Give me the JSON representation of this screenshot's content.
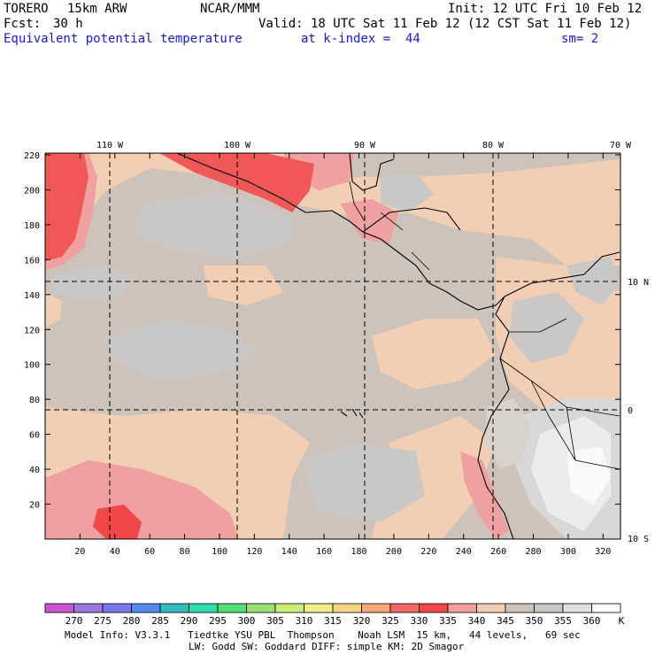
{
  "header": {
    "model": "TORERO",
    "resolution": "15km ARW",
    "center": "NCAR/MMM",
    "init": "Init: 12 UTC Fri 10 Feb 12",
    "fcst_label": "Fcst:",
    "fcst_value": "30 h",
    "valid": "Valid: 18 UTC Sat 11 Feb 12 (12 CST Sat 11 Feb 12)",
    "field": "Equivalent potential temperature",
    "level": "at k-index =  44",
    "smoothing": "sm= 2"
  },
  "map": {
    "lon_labels": [
      "110 W",
      "100 W",
      "90 W",
      "80 W",
      "70 W"
    ],
    "lat_labels": [
      "10 N",
      "0",
      "10 S"
    ],
    "x_ticks": [
      "20",
      "40",
      "60",
      "80",
      "100",
      "120",
      "140",
      "160",
      "180",
      "200",
      "220",
      "240",
      "260",
      "280",
      "300",
      "320"
    ],
    "y_ticks": [
      "20",
      "40",
      "60",
      "80",
      "100",
      "120",
      "140",
      "160",
      "180",
      "200",
      "220"
    ]
  },
  "colorbar": {
    "labels": [
      "270",
      "275",
      "280",
      "285",
      "290",
      "295",
      "300",
      "305",
      "310",
      "315",
      "320",
      "325",
      "330",
      "335",
      "340",
      "345",
      "350",
      "355",
      "360"
    ],
    "unit": "K",
    "colors": [
      "#cc55cc",
      "#9977dd",
      "#7777ee",
      "#5588ee",
      "#33bbbb",
      "#33ddaa",
      "#55dd77",
      "#99e077",
      "#ccee77",
      "#f0ee88",
      "#f8d488",
      "#f8a878",
      "#f06868",
      "#f04848",
      "#f0a0a0",
      "#f2cfb4",
      "#cdc3bb",
      "#c8c8c8",
      "#e0e0e0",
      "#fafafa"
    ]
  },
  "footer": {
    "line1": "Model Info: V3.3.1   Tiedtke YSU PBL  Thompson    Noah LSM  15 km,   44 levels,   69 sec",
    "line2": "LW: Godd SW: Goddard DIFF: simple KM: 2D Smagor"
  }
}
